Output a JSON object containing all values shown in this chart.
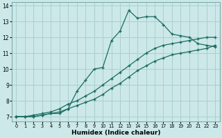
{
  "xlabel": "Humidex (Indice chaleur)",
  "bg_color": "#cce8e8",
  "line_color": "#1a6b62",
  "grid_color": "#aacfcf",
  "xlim": [
    -0.5,
    23.5
  ],
  "ylim": [
    6.7,
    14.2
  ],
  "xticks": [
    0,
    1,
    2,
    3,
    4,
    5,
    6,
    7,
    8,
    9,
    10,
    11,
    12,
    13,
    14,
    15,
    16,
    17,
    18,
    19,
    20,
    21,
    22,
    23
  ],
  "yticks": [
    7,
    8,
    9,
    10,
    11,
    12,
    13,
    14
  ],
  "line1_x": [
    0,
    1,
    2,
    3,
    4,
    5,
    6,
    7,
    8,
    9,
    10,
    11,
    12,
    13,
    14,
    15,
    16,
    17,
    18,
    19,
    20,
    21,
    22,
    23
  ],
  "line1_y": [
    7.0,
    7.0,
    7.0,
    7.1,
    7.2,
    7.2,
    7.5,
    8.6,
    9.3,
    10.0,
    10.1,
    11.8,
    12.4,
    13.7,
    13.2,
    13.3,
    13.3,
    12.8,
    12.2,
    12.1,
    12.0,
    11.6,
    11.5,
    11.4
  ],
  "line2_x": [
    0,
    1,
    2,
    3,
    4,
    5,
    6,
    7,
    8,
    9,
    10,
    11,
    12,
    13,
    14,
    15,
    16,
    17,
    18,
    19,
    20,
    21,
    22,
    23
  ],
  "line2_y": [
    7.0,
    7.0,
    7.1,
    7.2,
    7.3,
    7.5,
    7.8,
    8.0,
    8.3,
    8.6,
    9.0,
    9.4,
    9.8,
    10.2,
    10.6,
    11.0,
    11.3,
    11.5,
    11.6,
    11.7,
    11.8,
    11.9,
    12.0,
    12.0
  ],
  "line3_x": [
    0,
    1,
    2,
    3,
    4,
    5,
    6,
    7,
    8,
    9,
    10,
    11,
    12,
    13,
    14,
    15,
    16,
    17,
    18,
    19,
    20,
    21,
    22,
    23
  ],
  "line3_y": [
    7.0,
    7.0,
    7.0,
    7.1,
    7.2,
    7.3,
    7.5,
    7.7,
    7.9,
    8.1,
    8.4,
    8.8,
    9.1,
    9.5,
    9.9,
    10.2,
    10.5,
    10.7,
    10.9,
    11.0,
    11.1,
    11.2,
    11.3,
    11.5
  ]
}
